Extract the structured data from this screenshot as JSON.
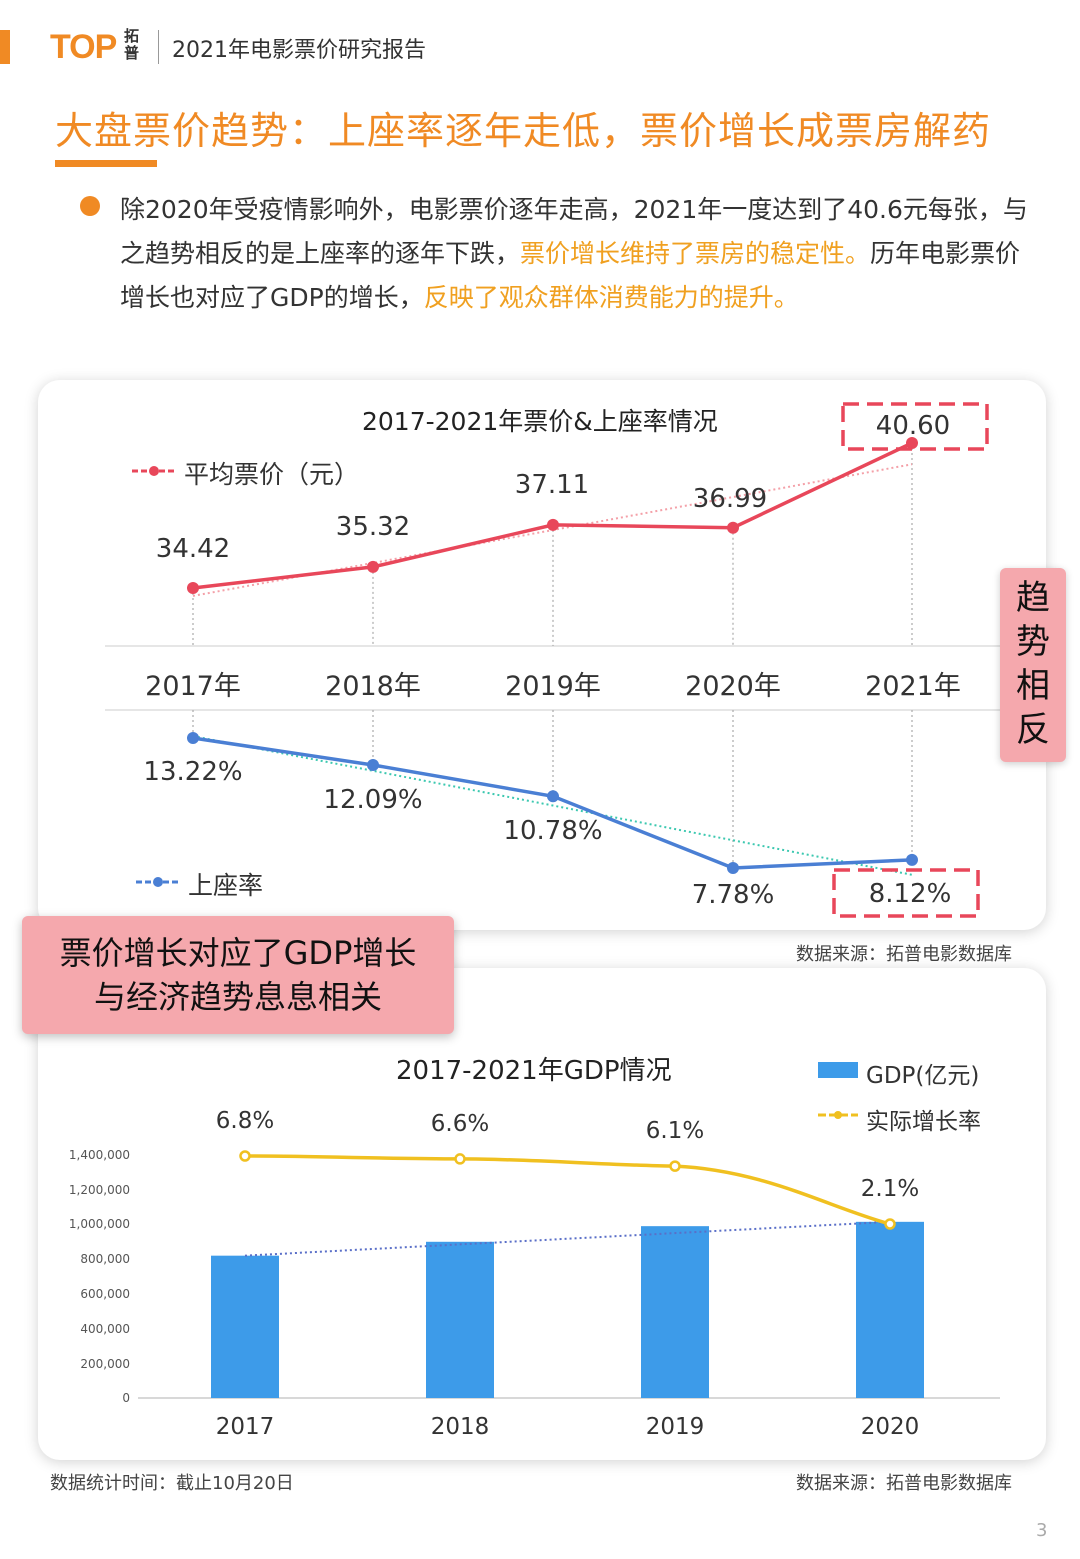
{
  "header": {
    "logo_text": "TOP",
    "logo_cn": "拓普",
    "report_title": "2021年电影票价研究报告"
  },
  "main_title": "大盘票价趋势：上座率逐年走低，票价增长成票房解药",
  "paragraph": {
    "part1": "除2020年受疫情影响外，电影票价逐年走高，2021年一度达到了40.6元每张，与之趋势相反的是上座率的逐年下跌，",
    "hl1": "票价增长维持了票房的稳定性。",
    "part2": "历年电影票价增长也对应了GDP的增长，",
    "hl2": "反映了观众群体消费能力的提升。"
  },
  "side_badge": [
    "趋",
    "势",
    "相",
    "反"
  ],
  "pink_box": {
    "line1": "票价增长对应了GDP增长",
    "line2": "与经济趋势息息相关"
  },
  "source1": "数据来源：拓普电影数据库",
  "footer": {
    "stat_time": "数据统计时间：截止10月20日",
    "source2": "数据来源：拓普电影数据库",
    "page": "3"
  },
  "colors": {
    "accent": "#f08a24",
    "price_line": "#e8475a",
    "occupancy_line": "#4a7fd4",
    "bar": "#3d9be9",
    "growth_line": "#f0c020",
    "badge": "#f5a8ad"
  },
  "chart_data": [
    {
      "type": "line",
      "title": "2017-2021年票价&上座率情况",
      "categories": [
        "2017年",
        "2018年",
        "2019年",
        "2020年",
        "2021年"
      ],
      "series": [
        {
          "name": "平均票价（元）",
          "values": [
            34.42,
            35.32,
            37.11,
            36.99,
            40.6
          ],
          "labels": [
            "34.42",
            "35.32",
            "37.11",
            "36.99",
            "40.60"
          ]
        },
        {
          "name": "上座率",
          "values": [
            13.22,
            12.09,
            10.78,
            7.78,
            8.12
          ],
          "labels": [
            "13.22%",
            "12.09%",
            "10.78%",
            "7.78%",
            "8.12%"
          ]
        }
      ],
      "highlighted": [
        "40.60",
        "8.12%"
      ],
      "trendlines": true
    },
    {
      "type": "bar",
      "title": "2017-2021年GDP情况",
      "categories": [
        "2017",
        "2018",
        "2019",
        "2020"
      ],
      "series": [
        {
          "name": "GDP(亿元)",
          "values": [
            820000,
            900000,
            990000,
            1015000
          ]
        },
        {
          "name": "实际增长率",
          "values": [
            6.8,
            6.6,
            6.1,
            2.1
          ],
          "labels": [
            "6.8%",
            "6.6%",
            "6.1%",
            "2.1%"
          ]
        }
      ],
      "ylim": [
        0,
        1400000
      ],
      "yticks": [
        "0",
        "200,000",
        "400,000",
        "600,000",
        "800,000",
        "1,000,000",
        "1,200,000",
        "1,400,000"
      ]
    }
  ]
}
